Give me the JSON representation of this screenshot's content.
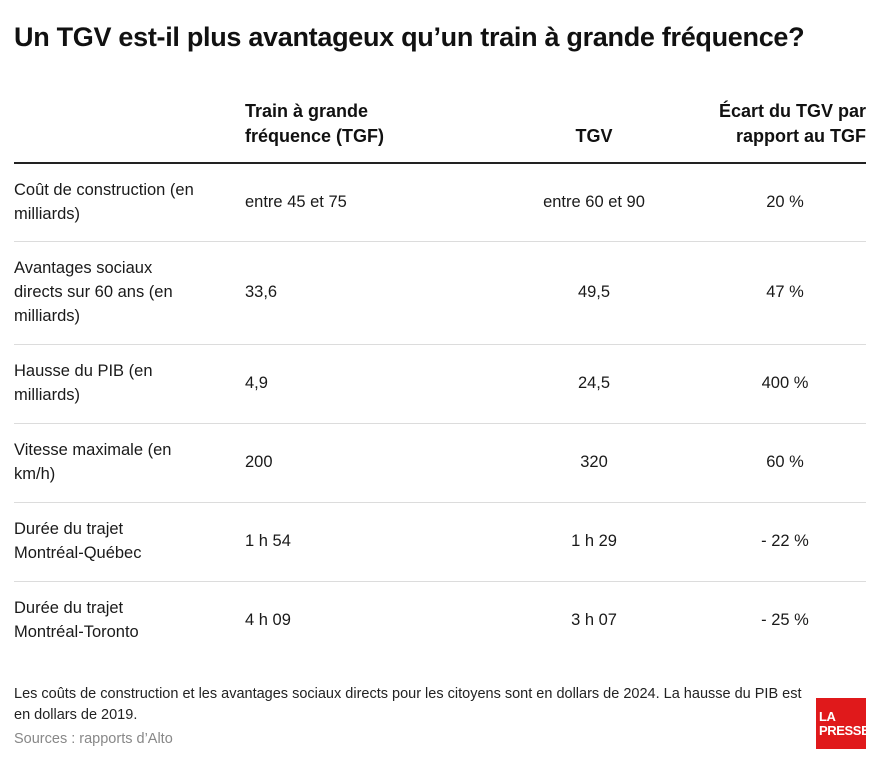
{
  "title": "Un TGV est-il plus avantageux qu’un train à grande fréquence?",
  "table": {
    "headers": [
      "",
      "Train à grande fréquence (TGF)",
      "TGV",
      "Écart du TGV par rapport au TGF"
    ],
    "rows": [
      {
        "label": "Coût de construction (en milliards)",
        "tgf": "entre 45 et 75",
        "tgv": "entre 60 et 90",
        "ecart": "20 %"
      },
      {
        "label": "Avantages sociaux directs sur 60 ans (en milliards)",
        "tgf": "33,6",
        "tgv": "49,5",
        "ecart": "47 %"
      },
      {
        "label": "Hausse du PIB (en milliards)",
        "tgf": "4,9",
        "tgv": "24,5",
        "ecart": "400 %"
      },
      {
        "label": "Vitesse maximale (en km/h)",
        "tgf": "200",
        "tgv": "320",
        "ecart": "60 %"
      },
      {
        "label": "Durée du trajet Montréal-Québec",
        "tgf": "1 h 54",
        "tgv": "1 h 29",
        "ecart": "- 22 %"
      },
      {
        "label": "Durée du trajet Montréal-Toronto",
        "tgf": "4 h 09",
        "tgv": "3 h 07",
        "ecart": "- 25 %"
      }
    ]
  },
  "note": "Les coûts de construction et les avantages sociaux directs pour les citoyens sont en dollars de 2024. La hausse du PIB est en dollars de 2019.",
  "sources": "Sources : rapports d’Alto",
  "logo": {
    "line1": "LA",
    "line2": "PRESSE",
    "color": "#e0191b"
  }
}
